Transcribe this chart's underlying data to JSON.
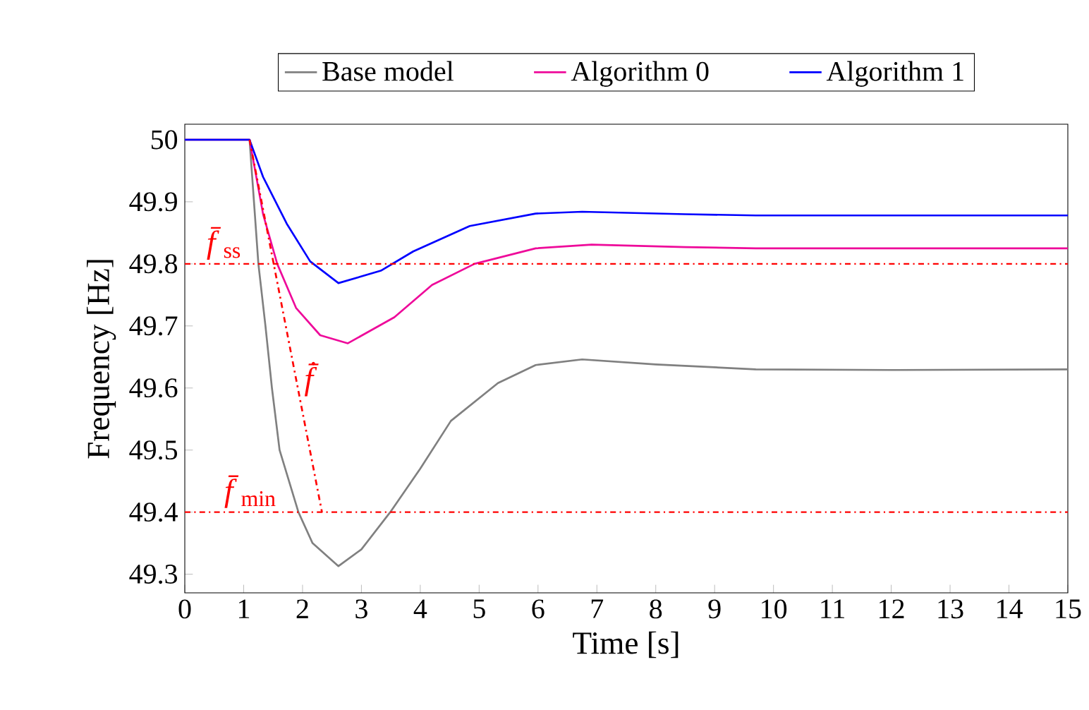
{
  "chart_data": {
    "type": "line",
    "xlabel": "Time [s]",
    "ylabel": "Frequency [Hz]",
    "xlim": [
      0,
      15
    ],
    "ylim": [
      49.27,
      50.025
    ],
    "xticks": [
      0,
      1,
      2,
      3,
      4,
      5,
      6,
      7,
      8,
      9,
      10,
      11,
      12,
      13,
      14,
      15
    ],
    "yticks": [
      49.3,
      49.4,
      49.5,
      49.6,
      49.7,
      49.8,
      49.9,
      50
    ],
    "legend": "top",
    "grid": false,
    "marker": "none",
    "series": [
      {
        "name": "Base model",
        "color": "#808080",
        "x": [
          0,
          1.1,
          1.25,
          1.37,
          1.48,
          1.61,
          1.93,
          2.17,
          2.61,
          3.0,
          3.49,
          4.0,
          4.52,
          5.32,
          5.96,
          6.75,
          8.0,
          9.7,
          12,
          15
        ],
        "values": [
          50,
          50,
          49.8,
          49.7,
          49.6,
          49.5,
          49.4,
          49.35,
          49.313,
          49.34,
          49.4,
          49.47,
          49.547,
          49.608,
          49.637,
          49.646,
          49.638,
          49.63,
          49.629,
          49.63
        ]
      },
      {
        "name": "Algorithm 0",
        "color": "#ee0a9a",
        "x": [
          0,
          1.1,
          1.33,
          1.57,
          1.89,
          2.3,
          2.77,
          3.56,
          4.2,
          4.92,
          5.96,
          6.91,
          8.5,
          9.7,
          15
        ],
        "values": [
          50,
          50,
          49.88,
          49.8,
          49.729,
          49.685,
          49.672,
          49.714,
          49.766,
          49.8,
          49.825,
          49.831,
          49.827,
          49.825,
          49.825
        ]
      },
      {
        "name": "Algorithm 1",
        "color": "#0000ff",
        "x": [
          0,
          1.1,
          1.33,
          1.73,
          2.13,
          2.61,
          3.33,
          3.88,
          4.84,
          5.96,
          6.75,
          8.5,
          9.7,
          15
        ],
        "values": [
          50,
          50,
          49.94,
          49.865,
          49.804,
          49.769,
          49.789,
          49.82,
          49.861,
          49.881,
          49.884,
          49.88,
          49.878,
          49.878
        ]
      },
      {
        "type": "line",
        "color": "#ff0000",
        "line_style": "dashdot",
        "x": [
          1.1,
          2.33
        ],
        "values": [
          50,
          49.4
        ]
      }
    ],
    "ref_lines": [
      {
        "axis": "y",
        "value": 49.8,
        "color": "#ff0000",
        "line_style": "dashdot"
      },
      {
        "axis": "y",
        "value": 49.4,
        "color": "#ff0000",
        "line_style": "dashdot"
      }
    ],
    "annotations": [
      {
        "text": "*f̄*$_{ss}$",
        "x": 0.3,
        "y": 49.8
      },
      {
        "text": "*f̄̇*",
        "x": 1.96,
        "y": 49.58
      },
      {
        "text": "*f̄*$_{min}$",
        "x": 0.6,
        "y": 49.4
      }
    ]
  }
}
